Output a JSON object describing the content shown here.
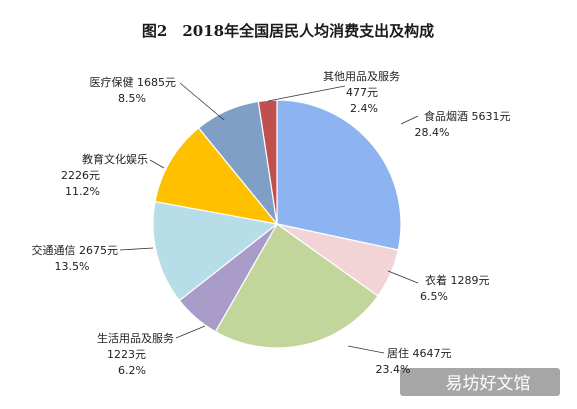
{
  "chart_data": {
    "type": "pie",
    "title": "图2　2018年全国居民人均消费支出及构成",
    "unit": "元",
    "slices": [
      {
        "category": "食品烟酒",
        "value": 5631,
        "percent": "28.4%",
        "value_label": "5631元",
        "color": "#8db4f0"
      },
      {
        "category": "衣着",
        "value": 1289,
        "percent": "6.5%",
        "value_label": "1289元",
        "color": "#f2d4d6"
      },
      {
        "category": "居住",
        "value": 4647,
        "percent": "23.4%",
        "value_label": "4647元",
        "color": "#c2d69b"
      },
      {
        "category": "生活用品及服务",
        "value": 1223,
        "percent": "6.2%",
        "value_label": "1223元",
        "color": "#a99cc9"
      },
      {
        "category": "交通通信",
        "value": 2675,
        "percent": "13.5%",
        "value_label": "2675元",
        "color": "#b7dde8"
      },
      {
        "category": "教育文化娱乐",
        "value": 2226,
        "percent": "11.2%",
        "value_label": "2226元",
        "color": "#ffc000"
      },
      {
        "category": "医疗保健",
        "value": 1685,
        "percent": "8.5%",
        "value_label": "1685元",
        "color": "#7f9fc7"
      },
      {
        "category": "其他用品及服务",
        "value": 477,
        "percent": "2.4%",
        "value_label": "477元",
        "color": "#c0504d"
      }
    ]
  },
  "watermark": {
    "text": "易坊好文馆"
  }
}
